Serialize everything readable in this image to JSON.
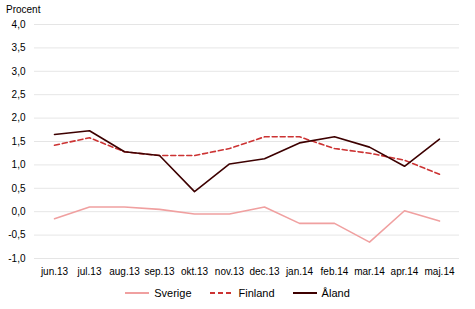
{
  "chart_data": {
    "type": "line",
    "ylabel": "Procent",
    "categories": [
      "jun.13",
      "jul.13",
      "aug.13",
      "sep.13",
      "okt.13",
      "nov.13",
      "dec.13",
      "jan.14",
      "feb.14",
      "mar.14",
      "apr.14",
      "maj.14"
    ],
    "series": [
      {
        "name": "Sverige",
        "color": "#f0a0a0",
        "line_style": "solid",
        "values": [
          -0.15,
          0.1,
          0.1,
          0.05,
          -0.05,
          -0.05,
          0.1,
          -0.25,
          -0.25,
          -0.65,
          0.02,
          -0.2
        ]
      },
      {
        "name": "Finland",
        "color": "#cc3333",
        "line_style": "dashed",
        "values": [
          1.42,
          1.58,
          1.28,
          1.2,
          1.2,
          1.35,
          1.6,
          1.6,
          1.35,
          1.25,
          1.1,
          0.8
        ]
      },
      {
        "name": "Åland",
        "color": "#3d0000",
        "line_style": "solid",
        "values": [
          1.65,
          1.73,
          1.28,
          1.2,
          0.43,
          1.02,
          1.13,
          1.47,
          1.6,
          1.38,
          0.97,
          1.55
        ]
      }
    ],
    "ylim": [
      -1.0,
      4.0
    ],
    "yticks": [
      {
        "value": -1.0,
        "label": "-1,0"
      },
      {
        "value": -0.5,
        "label": "-0,5"
      },
      {
        "value": 0.0,
        "label": "0,0"
      },
      {
        "value": 0.5,
        "label": "0,5"
      },
      {
        "value": 1.0,
        "label": "1,0"
      },
      {
        "value": 1.5,
        "label": "1,5"
      },
      {
        "value": 2.0,
        "label": "2,0"
      },
      {
        "value": 2.5,
        "label": "2,5"
      },
      {
        "value": 3.0,
        "label": "3,0"
      },
      {
        "value": 3.5,
        "label": "3,5"
      },
      {
        "value": 4.0,
        "label": "4,0"
      }
    ],
    "grid": true,
    "legend": "bottom"
  }
}
